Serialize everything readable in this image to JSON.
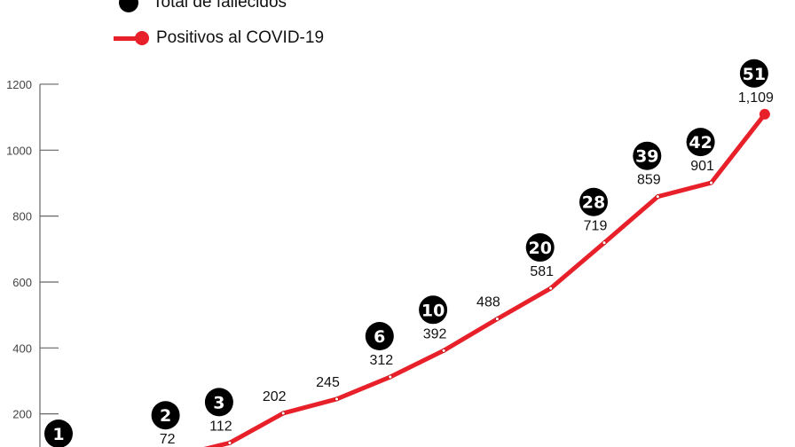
{
  "chart_data": {
    "type": "line",
    "title": "",
    "xlabel": "",
    "ylabel": "",
    "ylim": [
      0,
      1200
    ],
    "yticks": [
      200,
      400,
      600,
      800,
      1000,
      1200
    ],
    "grid": false,
    "legend": "top-left",
    "legend_entries": [
      "Total de fallecidos",
      "Positivos al COVID-19"
    ],
    "colors": {
      "positivos": "#e8202a",
      "fallecidos": "#000000"
    },
    "series": [
      {
        "name": "Positivos al COVID-19",
        "values": [
          null,
          null,
          72,
          112,
          202,
          245,
          312,
          392,
          488,
          581,
          719,
          859,
          901,
          1109
        ],
        "labels": [
          "",
          "",
          "72",
          "112",
          "202",
          "245",
          "312",
          "392",
          "488",
          "581",
          "719",
          "859",
          "901",
          "1,109"
        ]
      },
      {
        "name": "Total de fallecidos",
        "values": [
          1,
          null,
          2,
          3,
          null,
          null,
          6,
          10,
          null,
          20,
          28,
          39,
          42,
          51
        ]
      }
    ]
  }
}
